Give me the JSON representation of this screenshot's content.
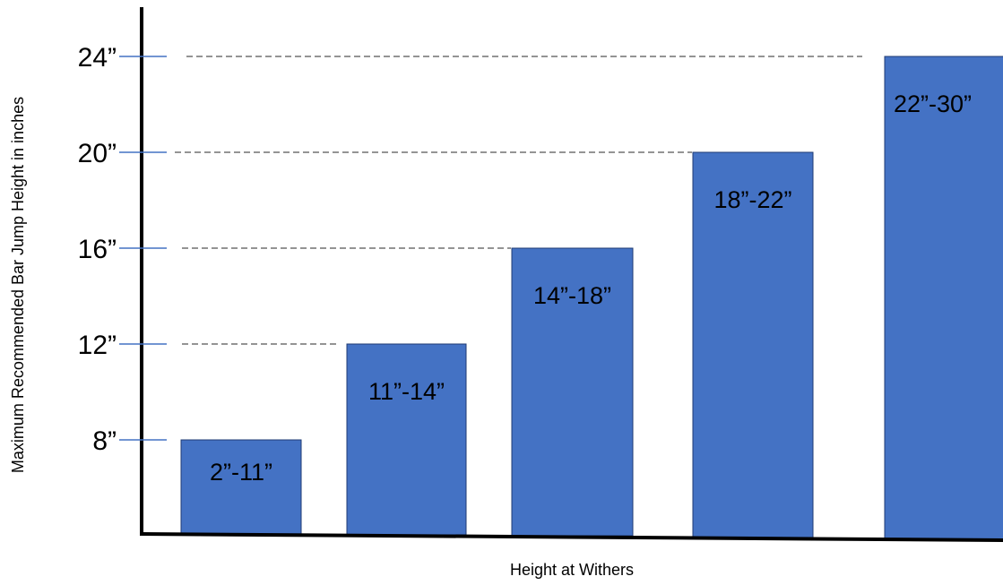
{
  "chart_data": {
    "type": "bar",
    "title": "",
    "xlabel": "Height at Withers",
    "ylabel": "Maximum Recommended Bar Jump Height in inches",
    "categories": [
      "2”-11”",
      "11”-14”",
      "14”-18”",
      "18”-22”",
      "22”-30”"
    ],
    "values": [
      8,
      12,
      16,
      20,
      24
    ],
    "y_ticks": [
      8,
      12,
      16,
      20,
      24
    ],
    "y_tick_labels": [
      "8”",
      "12”",
      "16”",
      "20”",
      "24”"
    ],
    "ylim": [
      4,
      28
    ],
    "grid": "dashed reference lines at tick levels",
    "legend": "none",
    "colors": {
      "bar": "#4472C4",
      "bar_edge": "#1F3B73",
      "tick_mark": "#4472C4",
      "reference_line": "#555555",
      "axis": "#000000"
    }
  }
}
